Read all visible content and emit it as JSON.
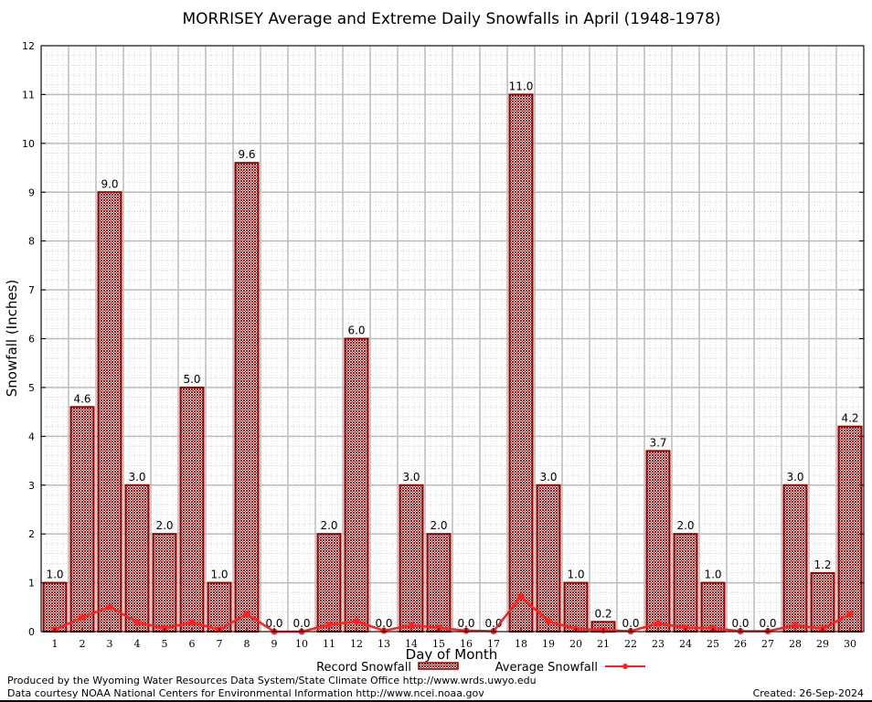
{
  "chart_data": {
    "type": "bar",
    "title": "MORRISEY Average and Extreme Daily Snowfalls in April (1948-1978)",
    "xlabel": "Day of Month",
    "ylabel": "Snowfall (Inches)",
    "ylim": [
      0,
      12
    ],
    "yticks": [
      0,
      1,
      2,
      3,
      4,
      5,
      6,
      7,
      8,
      9,
      10,
      11,
      12
    ],
    "grid": true,
    "legend_position": "bottom",
    "categories": [
      "1",
      "2",
      "3",
      "4",
      "5",
      "6",
      "7",
      "8",
      "9",
      "10",
      "11",
      "12",
      "13",
      "14",
      "15",
      "16",
      "17",
      "18",
      "19",
      "20",
      "21",
      "22",
      "23",
      "24",
      "25",
      "26",
      "27",
      "28",
      "29",
      "30"
    ],
    "series": [
      {
        "name": "Record Snowfall",
        "type": "bar",
        "color": "#cc0000",
        "values": [
          1.0,
          4.6,
          9.0,
          3.0,
          2.0,
          5.0,
          1.0,
          9.6,
          0.0,
          0.0,
          2.0,
          6.0,
          0.0,
          3.0,
          2.0,
          0.0,
          0.0,
          11.0,
          3.0,
          1.0,
          0.2,
          0.0,
          3.7,
          2.0,
          1.0,
          0.0,
          0.0,
          3.0,
          1.2,
          4.2
        ],
        "labels": [
          "1.0",
          "4.6",
          "9.0",
          "3.0",
          "2.0",
          "5.0",
          "1.0",
          "9.6",
          "0.0",
          "0.0",
          "2.0",
          "6.0",
          "0.0",
          "3.0",
          "2.0",
          "0.0",
          "0.0",
          "11.0",
          "3.0",
          "1.0",
          "0.2",
          "0.0",
          "3.7",
          "2.0",
          "1.0",
          "0.0",
          "0.0",
          "3.0",
          "1.2",
          "4.2"
        ]
      },
      {
        "name": "Average Snowfall",
        "type": "line",
        "color": "#ff2020",
        "values": [
          0.04,
          0.29,
          0.51,
          0.19,
          0.07,
          0.19,
          0.04,
          0.36,
          0.0,
          0.0,
          0.14,
          0.21,
          0.02,
          0.13,
          0.08,
          0.02,
          0.01,
          0.72,
          0.21,
          0.06,
          0.03,
          0.01,
          0.17,
          0.08,
          0.07,
          0.01,
          0.01,
          0.13,
          0.06,
          0.36
        ]
      }
    ]
  },
  "footer": {
    "produced_by": "Produced by the Wyoming Water Resources Data System/State Climate Office http://www.wrds.uwyo.edu",
    "courtesy": "Data courtesy NOAA National Centers for Environmental Information http://www.ncei.noaa.gov",
    "created": "Created: 26-Sep-2024"
  }
}
